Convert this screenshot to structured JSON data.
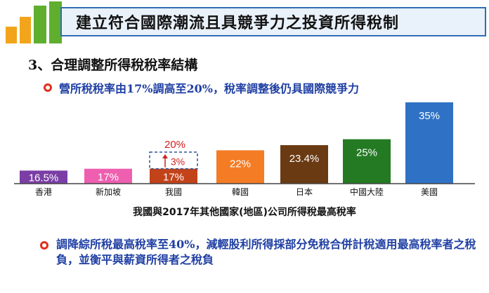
{
  "header": {
    "title": "建立符合國際潮流且具競爭力之投資所得稅制"
  },
  "section": {
    "heading": "3、合理調整所得稅稅率結構"
  },
  "bullets": [
    {
      "text": "營所稅稅率由17%調高至20%，稅率調整後仍具國際競爭力"
    },
    {
      "text": "調降綜所稅最高稅率至40%，減輕股利所得採部分免稅合併計稅適用最高稅率者之稅負，並衡平與薪資所得者之稅負"
    }
  ],
  "chart_data": {
    "type": "bar",
    "title": "",
    "xlabel": "我國與2017年其他國家(地區)公司所得稅最高稅率",
    "ylabel": "",
    "ylim": [
      0,
      37
    ],
    "categories": [
      "香港",
      "新加坡",
      "我國",
      "韓國",
      "日本",
      "中國大陸",
      "美國"
    ],
    "values": [
      16.5,
      17,
      17,
      22,
      23.4,
      25,
      35
    ],
    "labels": [
      "16.5%",
      "17%",
      "17%",
      "22%",
      "23.4%",
      "25%",
      "35%"
    ],
    "colors": [
      "#7a3ea5",
      "#ee5fb0",
      "#c2421a",
      "#f47c25",
      "#6a3a12",
      "#237a23",
      "#2f72c5"
    ],
    "label_colors": [
      "#ffffff",
      "#ffffff",
      "#ffffff",
      "#ffffff",
      "#ffffff",
      "#ffffff",
      "#ffffff"
    ],
    "annotation": {
      "category": "我國",
      "increase_label": "3%",
      "new_total_label": "20%",
      "new_total_value": 20,
      "color": "#d11f1f"
    }
  }
}
